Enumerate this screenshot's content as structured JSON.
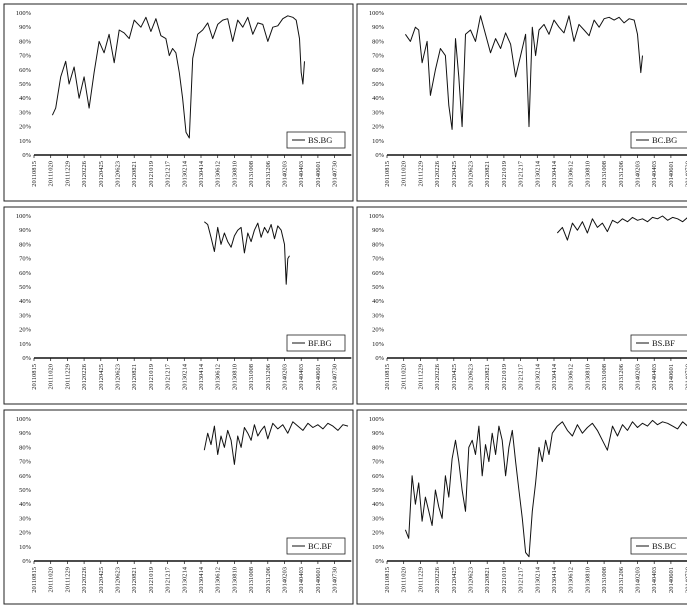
{
  "chart_data": [
    {
      "type": "line",
      "legend": "BS.BG",
      "legend_position": "bottom-right",
      "ylim": [
        0,
        100
      ],
      "y_tick_labels": [
        "0%",
        "10%",
        "20%",
        "30%",
        "40%",
        "50%",
        "60%",
        "70%",
        "80%",
        "90%",
        "100%"
      ],
      "x_tick_labels": [
        "20110815",
        "20111020",
        "20111229",
        "20120226",
        "20120425",
        "20120623",
        "20120821",
        "20121019",
        "20121217",
        "20130214",
        "20130414",
        "20130612",
        "20130810",
        "20131008",
        "20131206",
        "20140203",
        "20140403",
        "20140601",
        "20140730",
        "20140929"
      ],
      "series": [
        {
          "x": [
            1.1,
            1.3,
            1.6,
            1.9,
            2.1,
            2.4,
            2.7,
            3.0,
            3.3,
            3.6,
            3.9,
            4.2,
            4.5,
            4.8,
            5.1,
            5.4,
            5.7,
            6.0,
            6.4,
            6.7,
            7.0,
            7.3,
            7.6,
            7.9,
            8.1,
            8.3,
            8.5,
            8.7,
            8.9,
            9.1,
            9.3,
            9.5,
            9.8,
            10.1,
            10.4,
            10.7,
            11.0,
            11.3,
            11.6,
            11.9,
            12.2,
            12.5,
            12.8,
            13.1,
            13.4,
            13.7,
            14.0,
            14.3,
            14.6,
            14.9,
            15.2,
            15.5,
            15.7,
            15.9,
            16.0,
            16.1,
            16.2
          ],
          "values": [
            28,
            33,
            55,
            66,
            50,
            62,
            40,
            55,
            33,
            58,
            80,
            72,
            85,
            65,
            88,
            86,
            82,
            95,
            90,
            97,
            87,
            96,
            84,
            82,
            70,
            75,
            72,
            58,
            40,
            16,
            12,
            68,
            85,
            88,
            93,
            82,
            92,
            95,
            96,
            80,
            95,
            90,
            97,
            85,
            93,
            92,
            80,
            90,
            91,
            96,
            98,
            97,
            95,
            82,
            58,
            50,
            66
          ]
        }
      ]
    },
    {
      "type": "line",
      "legend": "BC.BG",
      "legend_position": "bottom-right",
      "ylim": [
        0,
        100
      ],
      "y_tick_labels": [
        "0%",
        "10%",
        "20%",
        "30%",
        "40%",
        "50%",
        "60%",
        "70%",
        "80%",
        "90%",
        "100%"
      ],
      "x_tick_labels": [
        "20110815",
        "20111020",
        "20111229",
        "20120226",
        "20120425",
        "20120623",
        "20120821",
        "20121019",
        "20121217",
        "20130214",
        "20130414",
        "20130612",
        "20130810",
        "20131008",
        "20131206",
        "20140203",
        "20140403",
        "20140601",
        "20140730"
      ],
      "series": [
        {
          "x": [
            1.1,
            1.4,
            1.7,
            1.9,
            2.1,
            2.4,
            2.6,
            2.9,
            3.2,
            3.5,
            3.7,
            3.9,
            4.1,
            4.3,
            4.5,
            4.7,
            5.0,
            5.3,
            5.6,
            5.9,
            6.2,
            6.5,
            6.8,
            7.1,
            7.4,
            7.7,
            8.0,
            8.3,
            8.5,
            8.7,
            8.9,
            9.1,
            9.4,
            9.7,
            10.0,
            10.3,
            10.6,
            10.9,
            11.2,
            11.5,
            11.8,
            12.1,
            12.4,
            12.7,
            13.0,
            13.3,
            13.6,
            13.9,
            14.2,
            14.5,
            14.8,
            15.0,
            15.2,
            15.3
          ],
          "values": [
            85,
            80,
            90,
            88,
            65,
            80,
            42,
            60,
            75,
            70,
            35,
            18,
            82,
            55,
            20,
            85,
            88,
            80,
            98,
            85,
            72,
            82,
            75,
            86,
            78,
            55,
            70,
            85,
            20,
            90,
            70,
            88,
            92,
            85,
            95,
            90,
            86,
            98,
            80,
            92,
            88,
            84,
            95,
            90,
            96,
            97,
            95,
            97,
            93,
            96,
            95,
            85,
            58,
            70
          ]
        }
      ]
    },
    {
      "type": "line",
      "legend": "BF.BG",
      "legend_position": "bottom-right",
      "ylim": [
        0,
        100
      ],
      "y_tick_labels": [
        "0%",
        "10%",
        "20%",
        "30%",
        "40%",
        "50%",
        "60%",
        "70%",
        "80%",
        "90%",
        "100%"
      ],
      "x_tick_labels": [
        "20110815",
        "20111020",
        "20111229",
        "20120226",
        "20120425",
        "20120623",
        "20120821",
        "20121019",
        "20121217",
        "20130214",
        "20130414",
        "20130612",
        "20130810",
        "20131008",
        "20131206",
        "20140203",
        "20140403",
        "20140601",
        "20140730",
        "20140929"
      ],
      "series": [
        {
          "x": [
            10.2,
            10.4,
            10.6,
            10.8,
            11.0,
            11.2,
            11.4,
            11.6,
            11.8,
            12.0,
            12.2,
            12.4,
            12.6,
            12.8,
            13.0,
            13.2,
            13.4,
            13.6,
            13.8,
            14.0,
            14.2,
            14.4,
            14.6,
            14.8,
            15.0,
            15.1,
            15.2,
            15.3
          ],
          "values": [
            96,
            94,
            85,
            75,
            92,
            80,
            88,
            82,
            78,
            86,
            90,
            92,
            74,
            88,
            82,
            90,
            95,
            85,
            92,
            88,
            94,
            84,
            93,
            90,
            80,
            52,
            70,
            72
          ]
        }
      ]
    },
    {
      "type": "line",
      "legend": "BS.BF",
      "legend_position": "bottom-right",
      "ylim": [
        0,
        100
      ],
      "y_tick_labels": [
        "0%",
        "10%",
        "20%",
        "30%",
        "40%",
        "50%",
        "60%",
        "70%",
        "80%",
        "90%",
        "100%"
      ],
      "x_tick_labels": [
        "20110815",
        "20111020",
        "20111229",
        "20120226",
        "20120425",
        "20120623",
        "20120821",
        "20121019",
        "20121217",
        "20130214",
        "20130414",
        "20130612",
        "20130810",
        "20131008",
        "20131206",
        "20140203",
        "20140403",
        "20140601",
        "20140730"
      ],
      "series": [
        {
          "x": [
            10.2,
            10.5,
            10.8,
            11.1,
            11.4,
            11.7,
            12.0,
            12.3,
            12.6,
            12.9,
            13.2,
            13.5,
            13.8,
            14.1,
            14.4,
            14.7,
            15.0,
            15.3,
            15.6,
            15.9,
            16.2,
            16.5,
            16.8,
            17.1,
            17.4,
            17.7,
            18.0,
            18.3,
            18.6,
            18.9
          ],
          "values": [
            88,
            92,
            83,
            95,
            90,
            96,
            88,
            98,
            92,
            95,
            89,
            97,
            95,
            98,
            96,
            99,
            97,
            98,
            96,
            99,
            98,
            100,
            97,
            99,
            98,
            96,
            99,
            97,
            95,
            97
          ]
        }
      ]
    },
    {
      "type": "line",
      "legend": "BC.BF",
      "legend_position": "bottom-right",
      "ylim": [
        0,
        100
      ],
      "y_tick_labels": [
        "0%",
        "10%",
        "20%",
        "30%",
        "40%",
        "50%",
        "60%",
        "70%",
        "80%",
        "90%",
        "100%"
      ],
      "x_tick_labels": [
        "20110815",
        "20111020",
        "20111229",
        "20120226",
        "20120425",
        "20120623",
        "20120821",
        "20121019",
        "20121217",
        "20130214",
        "20130414",
        "20130612",
        "20130810",
        "20131008",
        "20131206",
        "20140203",
        "20140403",
        "20140601",
        "20140730",
        "20140929"
      ],
      "series": [
        {
          "x": [
            10.2,
            10.4,
            10.6,
            10.8,
            11.0,
            11.2,
            11.4,
            11.6,
            11.8,
            12.0,
            12.2,
            12.4,
            12.6,
            12.8,
            13.0,
            13.2,
            13.4,
            13.6,
            13.8,
            14.0,
            14.3,
            14.6,
            14.9,
            15.2,
            15.5,
            15.8,
            16.1,
            16.4,
            16.7,
            17.0,
            17.3,
            17.6,
            17.9,
            18.2,
            18.5,
            18.8
          ],
          "values": [
            78,
            90,
            82,
            95,
            75,
            88,
            80,
            92,
            85,
            68,
            88,
            80,
            94,
            90,
            85,
            96,
            88,
            92,
            95,
            86,
            97,
            93,
            96,
            90,
            98,
            95,
            92,
            97,
            94,
            96,
            93,
            97,
            95,
            92,
            96,
            95
          ]
        }
      ]
    },
    {
      "type": "line",
      "legend": "BS.BC",
      "legend_position": "bottom-right",
      "ylim": [
        0,
        100
      ],
      "y_tick_labels": [
        "0%",
        "10%",
        "20%",
        "30%",
        "40%",
        "50%",
        "60%",
        "70%",
        "80%",
        "90%",
        "100%"
      ],
      "x_tick_labels": [
        "20110815",
        "20111020",
        "20111229",
        "20120226",
        "20120425",
        "20120623",
        "20120821",
        "20121019",
        "20121217",
        "20130214",
        "20130414",
        "20130612",
        "20130810",
        "20131008",
        "20131206",
        "20140203",
        "20140403",
        "20140601",
        "20140730"
      ],
      "series": [
        {
          "x": [
            1.1,
            1.3,
            1.5,
            1.7,
            1.9,
            2.1,
            2.3,
            2.5,
            2.7,
            2.9,
            3.1,
            3.3,
            3.5,
            3.7,
            3.9,
            4.1,
            4.3,
            4.5,
            4.7,
            4.9,
            5.1,
            5.3,
            5.5,
            5.7,
            5.9,
            6.1,
            6.3,
            6.5,
            6.7,
            6.9,
            7.1,
            7.3,
            7.5,
            7.7,
            7.9,
            8.1,
            8.3,
            8.5,
            8.7,
            8.9,
            9.1,
            9.3,
            9.5,
            9.7,
            9.9,
            10.2,
            10.5,
            10.8,
            11.1,
            11.4,
            11.7,
            12.0,
            12.3,
            12.6,
            12.9,
            13.2,
            13.5,
            13.8,
            14.1,
            14.4,
            14.7,
            15.0,
            15.3,
            15.6,
            15.9,
            16.2,
            16.5,
            16.8,
            17.1,
            17.4,
            17.7,
            18.0,
            18.3,
            18.6,
            18.9
          ],
          "values": [
            22,
            16,
            60,
            40,
            55,
            28,
            45,
            35,
            25,
            50,
            38,
            30,
            60,
            45,
            72,
            85,
            70,
            50,
            35,
            80,
            85,
            75,
            95,
            60,
            82,
            70,
            90,
            75,
            95,
            85,
            60,
            80,
            92,
            70,
            50,
            30,
            6,
            3,
            35,
            55,
            80,
            70,
            85,
            75,
            90,
            95,
            98,
            92,
            88,
            96,
            90,
            94,
            97,
            92,
            85,
            78,
            95,
            88,
            96,
            92,
            98,
            94,
            97,
            95,
            99,
            96,
            98,
            97,
            95,
            93,
            98,
            95,
            90,
            92,
            88
          ]
        }
      ]
    }
  ]
}
